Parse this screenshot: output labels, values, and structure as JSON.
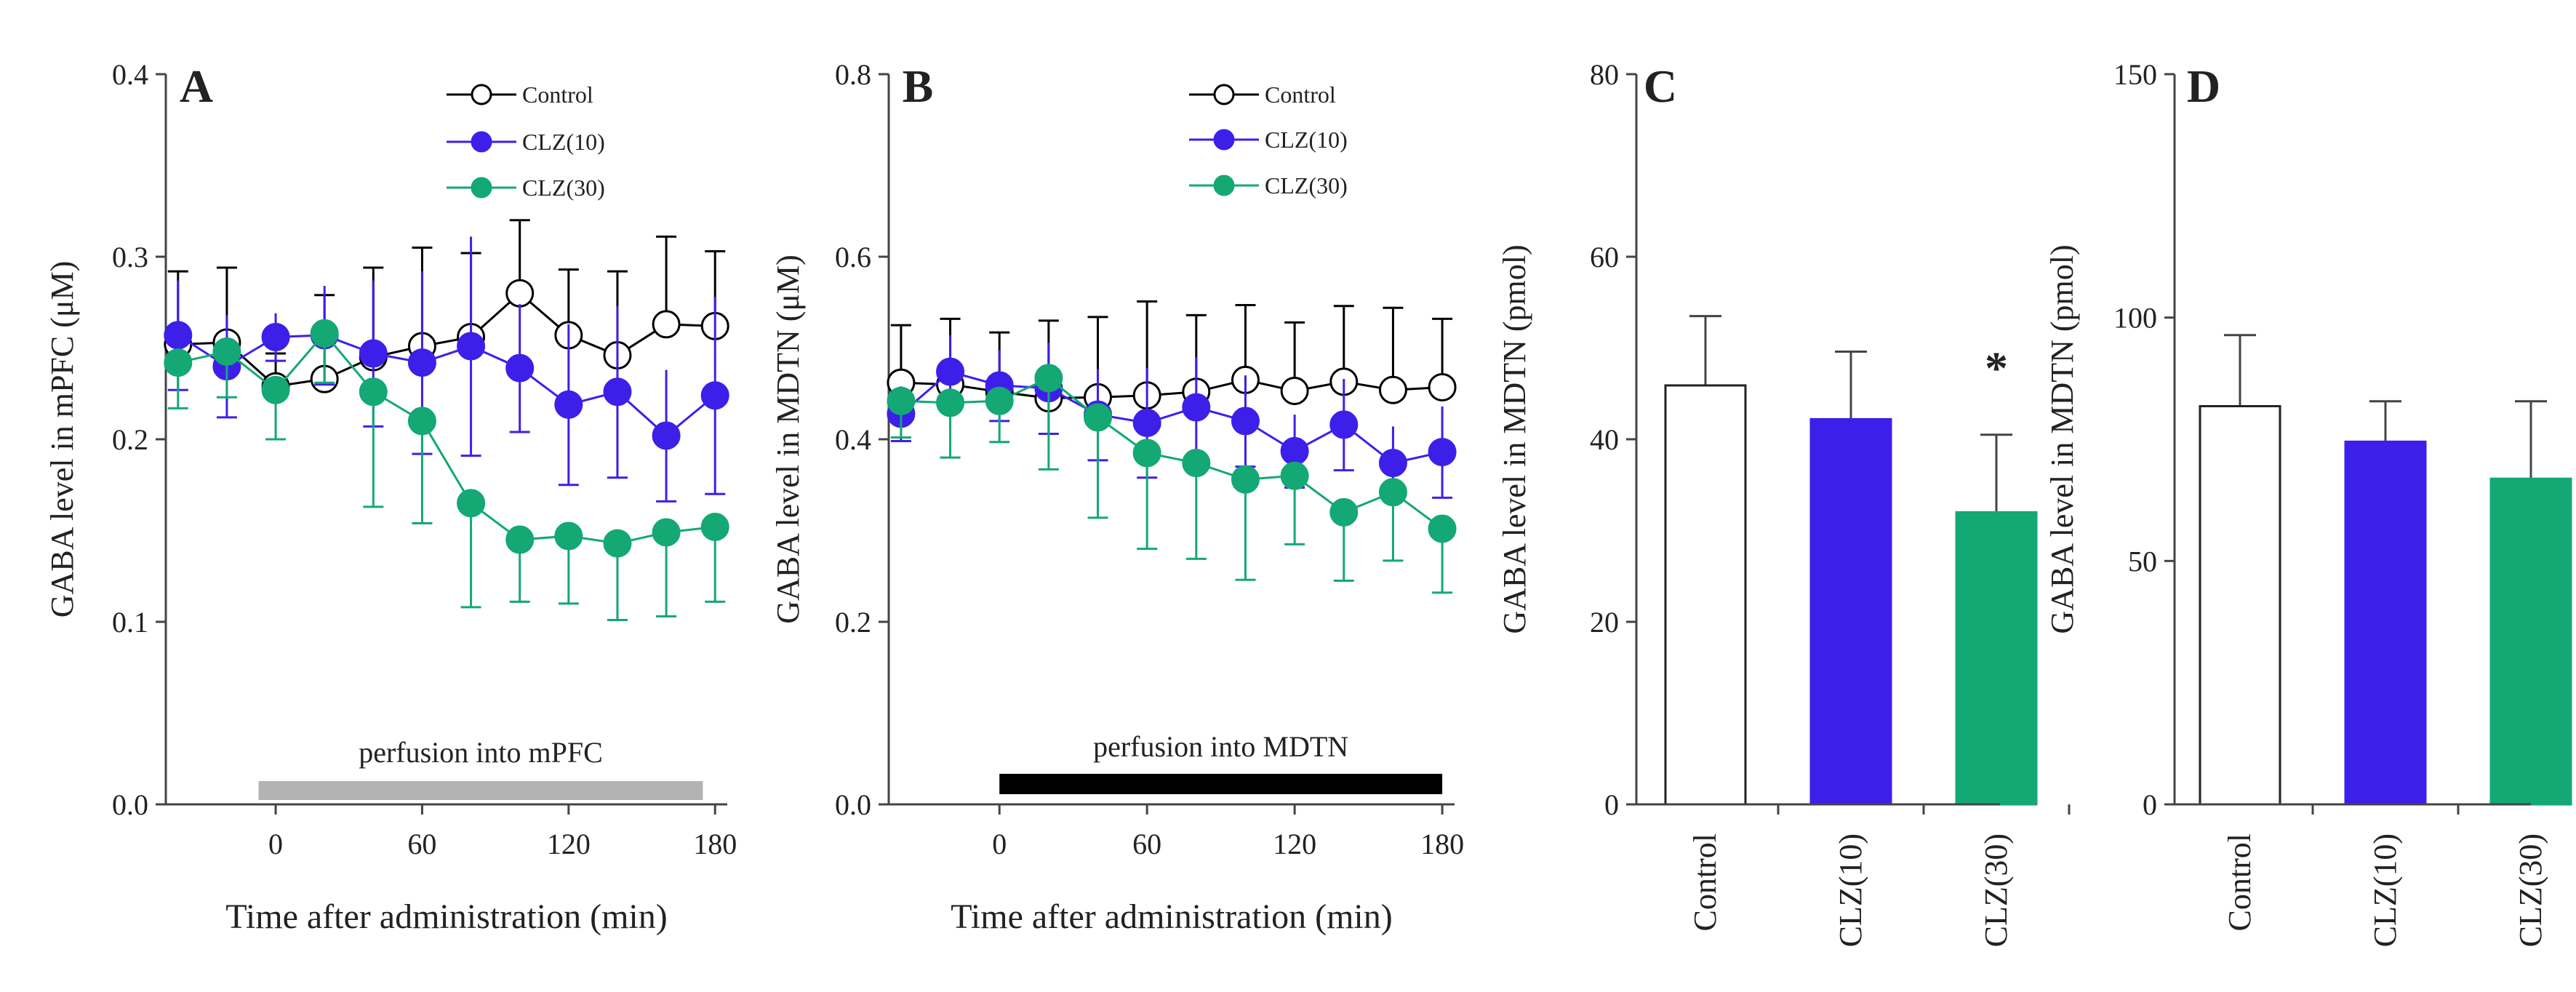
{
  "chart_data": [
    {
      "panel": "A",
      "type": "line",
      "xlabel": "Time after administration (min)",
      "ylabel": "GABA level in mPFC (μM)",
      "ylim": [
        0,
        0.4
      ],
      "yticks": [
        "0.0",
        "0.1",
        "0.2",
        "0.3",
        "0.4"
      ],
      "yticks_values": [
        0,
        0.1,
        0.2,
        0.3,
        0.4
      ],
      "xlim": [
        -45,
        185
      ],
      "xticks": [
        "0",
        "60",
        "120",
        "180"
      ],
      "xticks_values": [
        0,
        60,
        120,
        180
      ],
      "perfusion_label": "perfusion into mPFC",
      "perfusion_range": [
        -7,
        175
      ],
      "perfusion_color": "#b3b3b3",
      "x": [
        -40,
        -20,
        0,
        20,
        40,
        60,
        80,
        100,
        120,
        140,
        160,
        180
      ],
      "series": [
        {
          "name": "Control",
          "color": "#000000",
          "fill": "#ffffff",
          "values": [
            0.252,
            0.253,
            0.229,
            0.233,
            0.245,
            0.251,
            0.256,
            0.28,
            0.257,
            0.246,
            0.263,
            0.262
          ],
          "errors": [
            0.04,
            0.041,
            0.018,
            0.046,
            0.049,
            0.054,
            0.046,
            0.04,
            0.036,
            0.046,
            0.048,
            0.041
          ]
        },
        {
          "name": "CLZ(10)",
          "color": "#3d1fea",
          "fill": "#3d1fea",
          "values": [
            0.257,
            0.24,
            0.256,
            0.257,
            0.247,
            0.242,
            0.251,
            0.239,
            0.219,
            0.226,
            0.202,
            0.224
          ],
          "errors": [
            0.03,
            0.028,
            0.013,
            0.027,
            0.04,
            0.05,
            0.06,
            0.035,
            0.044,
            0.047,
            0.036,
            0.054
          ]
        },
        {
          "name": "CLZ(30)",
          "color": "#13a874",
          "fill": "#13a874",
          "values": [
            0.242,
            0.248,
            0.227,
            0.258,
            0.226,
            0.21,
            0.165,
            0.145,
            0.147,
            0.143,
            0.149,
            0.152
          ],
          "errors": [
            0.025,
            0.025,
            0.027,
            0.027,
            0.063,
            0.056,
            0.057,
            0.034,
            0.037,
            0.042,
            0.046,
            0.041
          ]
        }
      ]
    },
    {
      "panel": "B",
      "type": "line",
      "xlabel": "Time after administration (min)",
      "ylabel": "GABA level in MDTN (μM)",
      "ylim": [
        0,
        0.8
      ],
      "yticks": [
        "0.0",
        "0.2",
        "0.4",
        "0.6",
        "0.8"
      ],
      "yticks_values": [
        0,
        0.2,
        0.4,
        0.6,
        0.8
      ],
      "xlim": [
        -45,
        185
      ],
      "xticks": [
        "0",
        "60",
        "120",
        "180"
      ],
      "xticks_values": [
        0,
        60,
        120,
        180
      ],
      "perfusion_label": "perfusion into MDTN",
      "perfusion_range": [
        0,
        180
      ],
      "perfusion_color": "#000000",
      "x": [
        -40,
        -20,
        0,
        20,
        40,
        60,
        80,
        100,
        120,
        140,
        160,
        180
      ],
      "series": [
        {
          "name": "Control",
          "color": "#000000",
          "fill": "#ffffff",
          "values": [
            0.462,
            0.46,
            0.452,
            0.445,
            0.446,
            0.448,
            0.452,
            0.465,
            0.453,
            0.463,
            0.454,
            0.457
          ],
          "errors": [
            0.063,
            0.072,
            0.065,
            0.085,
            0.088,
            0.103,
            0.084,
            0.082,
            0.075,
            0.083,
            0.09,
            0.075
          ]
        },
        {
          "name": "CLZ(10)",
          "color": "#3d1fea",
          "fill": "#3d1fea",
          "values": [
            0.428,
            0.474,
            0.459,
            0.456,
            0.427,
            0.418,
            0.435,
            0.42,
            0.387,
            0.416,
            0.374,
            0.386
          ],
          "errors": [
            0.03,
            0.04,
            0.039,
            0.05,
            0.05,
            0.06,
            0.055,
            0.05,
            0.04,
            0.05,
            0.04,
            0.05
          ]
        },
        {
          "name": "CLZ(30)",
          "color": "#13a874",
          "fill": "#13a874",
          "values": [
            0.442,
            0.44,
            0.442,
            0.467,
            0.424,
            0.385,
            0.374,
            0.356,
            0.36,
            0.32,
            0.342,
            0.302
          ],
          "errors": [
            0.04,
            0.06,
            0.045,
            0.1,
            0.11,
            0.105,
            0.105,
            0.11,
            0.075,
            0.075,
            0.075,
            0.07
          ]
        }
      ]
    },
    {
      "panel": "C",
      "type": "bar",
      "ylabel": "GABA level in MDTN (pmol)",
      "ylim": [
        0,
        80
      ],
      "yticks": [
        "0",
        "20",
        "40",
        "60",
        "80"
      ],
      "yticks_values": [
        0,
        20,
        40,
        60,
        80
      ],
      "categories": [
        "Control",
        "CLZ(10)",
        "CLZ(30)"
      ],
      "values": [
        45.9,
        42.2,
        32.0
      ],
      "errors": [
        7.6,
        7.4,
        8.5
      ],
      "colors": [
        "#ffffff",
        "#3d1fea",
        "#13a874"
      ],
      "annotation": "*",
      "annotation_index": 2
    },
    {
      "panel": "D",
      "type": "bar",
      "ylabel": "GABA level in MDTN (pmol)",
      "ylim": [
        0,
        150
      ],
      "yticks": [
        "0",
        "50",
        "100",
        "150"
      ],
      "yticks_values": [
        0,
        50,
        100,
        150
      ],
      "categories": [
        "Control",
        "CLZ(10)",
        "CLZ(30)"
      ],
      "values": [
        81.8,
        74.5,
        66.9
      ],
      "errors": [
        14.6,
        8.3,
        15.9
      ],
      "colors": [
        "#ffffff",
        "#3d1fea",
        "#13a874"
      ]
    }
  ]
}
